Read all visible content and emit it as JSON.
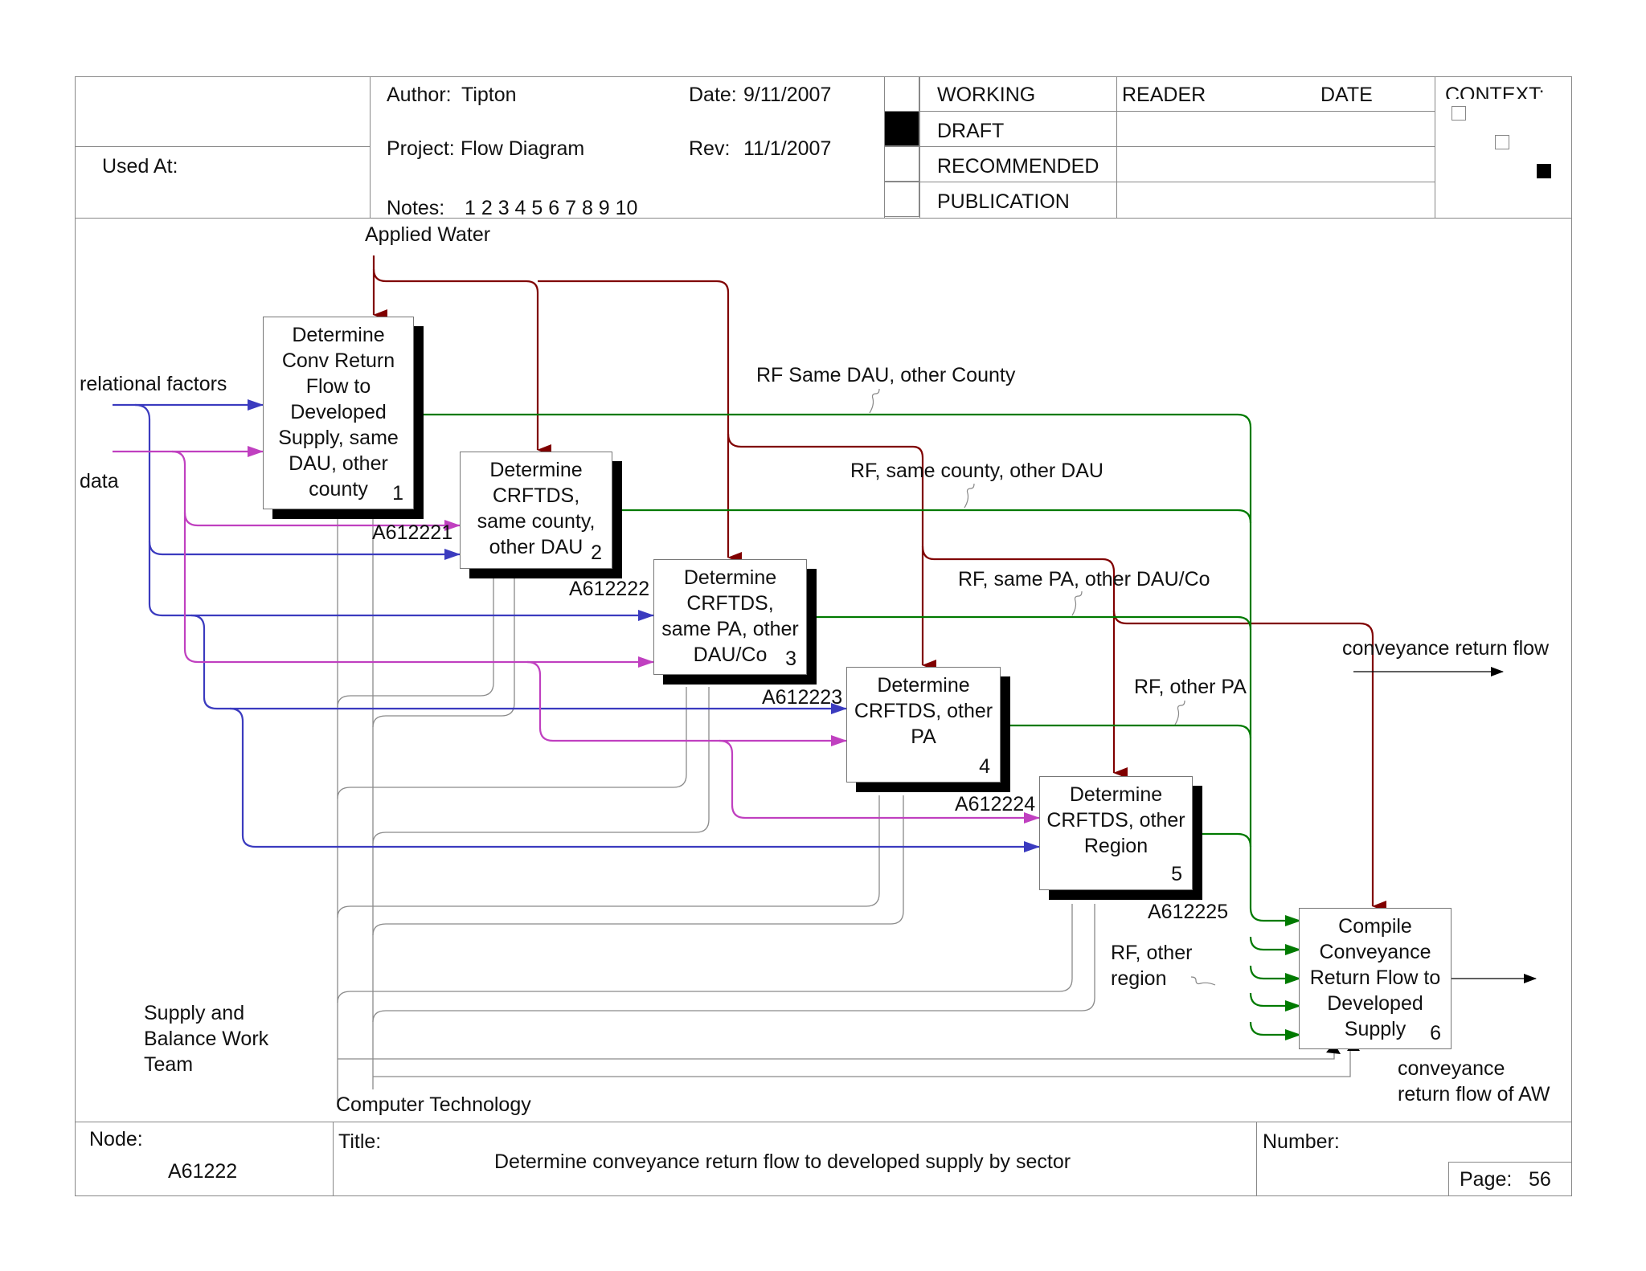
{
  "header": {
    "used_at_label": "Used At:",
    "author_label": "Author:",
    "author": "Tipton",
    "date_label": "Date:",
    "date": "9/11/2007",
    "project_label": "Project:",
    "project": "Flow Diagram",
    "rev_label": "Rev:",
    "rev": "11/1/2007",
    "notes_label": "Notes:",
    "notes": "1 2 3 4 5 6 7 8 9 10",
    "status": [
      {
        "label": "WORKING",
        "checked": false
      },
      {
        "label": "DRAFT",
        "checked": true
      },
      {
        "label": "RECOMMENDED",
        "checked": false
      },
      {
        "label": "PUBLICATION",
        "checked": false
      }
    ],
    "reader_label": "READER",
    "reader_date_label": "DATE",
    "context_label": "CONTEXT:"
  },
  "diagram": {
    "boxes": [
      {
        "label": "Determine\nConv Return\nFlow to\nDeveloped\nSupply, same\nDAU, other\ncounty",
        "number": "1",
        "node": "A612221"
      },
      {
        "label": "Determine\nCRFTDS,\nsame county,\nother DAU",
        "number": "2",
        "node": "A612222"
      },
      {
        "label": "Determine\nCRFTDS,\nsame PA, other\nDAU/Co",
        "number": "3",
        "node": "A612223"
      },
      {
        "label": "Determine\nCRFTDS, other\nPA",
        "number": "4",
        "node": "A612224"
      },
      {
        "label": "Determine\nCRFTDS, other\nRegion",
        "number": "5",
        "node": "A612225"
      },
      {
        "label": "Compile\nConveyance\nReturn Flow to\nDeveloped\nSupply",
        "number": "6",
        "node": ""
      }
    ],
    "labels": {
      "applied_water": "Applied Water",
      "relational_factors": "relational factors",
      "data": "data",
      "rf_same_dau_other_county": "RF Same DAU, other County",
      "rf_same_county_other_dau": "RF, same county, other DAU",
      "rf_same_pa_other_dau_co": "RF, same PA, other DAU/Co",
      "rf_other_pa": "RF, other PA",
      "rf_other_region": "RF, other\nregion",
      "conveyance_return_flow": "conveyance return flow",
      "conveyance_return_flow_of_aw": "conveyance\nreturn flow of AW",
      "supply_balance_team": "Supply and\nBalance Work\nTeam",
      "computer_technology": "Computer Technology"
    },
    "colors": {
      "input": "#800000",
      "relational": "#3b3bbf",
      "data": "#c040c0",
      "output": "#007a00",
      "mechanism": "#808080"
    }
  },
  "footer": {
    "node_label": "Node:",
    "node": "A61222",
    "title_label": "Title:",
    "title": "Determine conveyance return flow to developed supply by sector",
    "number_label": "Number:",
    "page_label": "Page:",
    "page": "56"
  }
}
